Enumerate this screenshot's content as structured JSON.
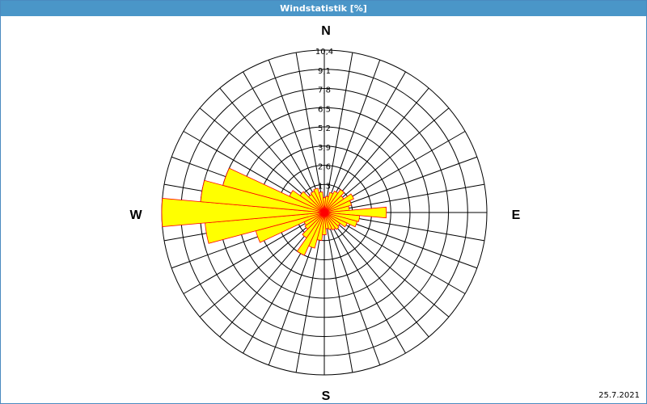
{
  "chart_data": {
    "type": "wind-rose",
    "title": "Windstatistik [%]",
    "unit": "%",
    "r_max": 10.4,
    "ring_labels": [
      "1,3",
      "2,6",
      "3,9",
      "5,2",
      "6,5",
      "7,8",
      "9,1",
      "10,4"
    ],
    "directions": [
      "N",
      "E",
      "S",
      "W"
    ],
    "sectors": 36,
    "bars": [
      {
        "dir": 0,
        "value": 0.4
      },
      {
        "dir": 10,
        "value": 0.5
      },
      {
        "dir": 20,
        "value": 0.8
      },
      {
        "dir": 30,
        "value": 1.0
      },
      {
        "dir": 40,
        "value": 1.3
      },
      {
        "dir": 50,
        "value": 1.0
      },
      {
        "dir": 60,
        "value": 1.6
      },
      {
        "dir": 70,
        "value": 1.3
      },
      {
        "dir": 80,
        "value": 1.1
      },
      {
        "dir": 90,
        "value": 3.6
      },
      {
        "dir": 100,
        "value": 1.8
      },
      {
        "dir": 110,
        "value": 1.7
      },
      {
        "dir": 120,
        "value": 1.1
      },
      {
        "dir": 130,
        "value": 0.7
      },
      {
        "dir": 140,
        "value": 0.8
      },
      {
        "dir": 150,
        "value": 0.7
      },
      {
        "dir": 160,
        "value": 0.6
      },
      {
        "dir": 170,
        "value": 0.5
      },
      {
        "dir": 180,
        "value": 0.9
      },
      {
        "dir": 190,
        "value": 1.3
      },
      {
        "dir": 200,
        "value": 1.9
      },
      {
        "dir": 210,
        "value": 2.6
      },
      {
        "dir": 220,
        "value": 1.5
      },
      {
        "dir": 230,
        "value": 1.0
      },
      {
        "dir": 240,
        "value": 0.9
      },
      {
        "dir": 250,
        "value": 4.2
      },
      {
        "dir": 260,
        "value": 7.5
      },
      {
        "dir": 270,
        "value": 10.4
      },
      {
        "dir": 280,
        "value": 7.8
      },
      {
        "dir": 290,
        "value": 6.5
      },
      {
        "dir": 300,
        "value": 2.0
      },
      {
        "dir": 310,
        "value": 1.4
      },
      {
        "dir": 320,
        "value": 0.9
      },
      {
        "dir": 330,
        "value": 1.0
      },
      {
        "dir": 340,
        "value": 1.1
      },
      {
        "dir": 350,
        "value": 0.8
      }
    ],
    "date": "25.7.2021",
    "colors": {
      "fill": "#ffff00",
      "outline": "#ff0000",
      "grid": "#000000"
    }
  }
}
